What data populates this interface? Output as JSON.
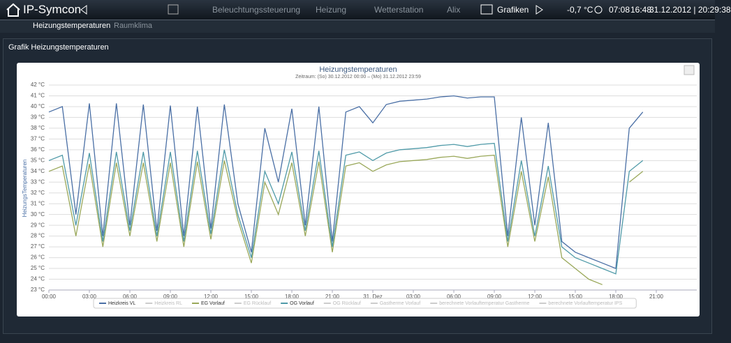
{
  "header": {
    "brand": "IP-Symcon",
    "nav": [
      "Beleuchtungssteuerung",
      "Heizung",
      "Wetterstation",
      "Alix",
      "Grafiken"
    ],
    "status": [
      "-0,7 °C",
      "07:08",
      "16:48",
      "31.12.2012 | 20:29:38"
    ]
  },
  "tabs": [
    "Heizungstemperaturen",
    "Raumklima"
  ],
  "section": {
    "title": "Grafik Heizungstemperaturen"
  },
  "chart_data": {
    "type": "line",
    "title": "Heizungstemperaturen",
    "subtitle": "Zeitraum: (So) 30.12.2012 00:00 – (Mo) 31.12.2012 23:59",
    "ylabel": "HeizungsTemperaturen",
    "x": [
      0,
      1,
      2,
      3,
      4,
      5,
      6,
      7,
      8,
      9,
      10,
      11,
      12,
      13,
      14,
      15,
      16,
      17,
      18,
      19,
      20,
      21,
      22,
      23,
      24,
      25,
      26,
      27,
      28,
      29,
      30,
      31,
      32,
      33,
      34,
      35,
      36,
      37,
      38,
      39,
      40,
      41,
      42,
      43,
      44
    ],
    "xlim": [
      0,
      48
    ],
    "xticks": [
      {
        "value": 0,
        "label": "00:00"
      },
      {
        "value": 3,
        "label": "03:00"
      },
      {
        "value": 6,
        "label": "06:00"
      },
      {
        "value": 9,
        "label": "09:00"
      },
      {
        "value": 12,
        "label": "12:00"
      },
      {
        "value": 15,
        "label": "15:00"
      },
      {
        "value": 18,
        "label": "18:00"
      },
      {
        "value": 21,
        "label": "21:00"
      },
      {
        "value": 24,
        "label": "31. Dez"
      },
      {
        "value": 27,
        "label": "03:00"
      },
      {
        "value": 30,
        "label": "06:00"
      },
      {
        "value": 33,
        "label": "09:00"
      },
      {
        "value": 36,
        "label": "12:00"
      },
      {
        "value": 39,
        "label": "15:00"
      },
      {
        "value": 42,
        "label": "18:00"
      },
      {
        "value": 45,
        "label": "21:00"
      }
    ],
    "ylim": [
      23,
      42
    ],
    "yticks": [
      {
        "value": 23,
        "label": "23 °C"
      },
      {
        "value": 24,
        "label": "24 °C"
      },
      {
        "value": 25,
        "label": "25 °C"
      },
      {
        "value": 26,
        "label": "26 °C"
      },
      {
        "value": 27,
        "label": "27 °C"
      },
      {
        "value": 28,
        "label": "28 °C"
      },
      {
        "value": 29,
        "label": "29 °C"
      },
      {
        "value": 30,
        "label": "30 °C"
      },
      {
        "value": 31,
        "label": "31 °C"
      },
      {
        "value": 32,
        "label": "32 °C"
      },
      {
        "value": 33,
        "label": "33 °C"
      },
      {
        "value": 34,
        "label": "34 °C"
      },
      {
        "value": 35,
        "label": "35 °C"
      },
      {
        "value": 36,
        "label": "36 °C"
      },
      {
        "value": 37,
        "label": "37 °C"
      },
      {
        "value": 38,
        "label": "38 °C"
      },
      {
        "value": 39,
        "label": "39 °C"
      },
      {
        "value": 40,
        "label": "40 °C"
      },
      {
        "value": 41,
        "label": "41 °C"
      },
      {
        "value": 42,
        "label": "42 °C"
      }
    ],
    "grid": true,
    "series": [
      {
        "name": "Heizkreis VL",
        "color": "#4a6fa5",
        "values": [
          39.5,
          40,
          30,
          40.3,
          28,
          40.3,
          29,
          40.2,
          28.5,
          40.1,
          28,
          40,
          28.7,
          40.2,
          31,
          26.5,
          38,
          33,
          39.8,
          29,
          40,
          27.5,
          39.5,
          40,
          38.5,
          40.2,
          40.5,
          40.6,
          40.7,
          40.9,
          41,
          40.8,
          40.9,
          40.9,
          28,
          39,
          29,
          38.5,
          27.5,
          26.5,
          26,
          25.5,
          25,
          38,
          39.5
        ]
      },
      {
        "name": "Heizkreis RL",
        "color": "#bbbbbb",
        "visible": false
      },
      {
        "name": "EG Vorlauf",
        "color": "#9aa85a",
        "values": [
          34,
          34.5,
          28,
          34.7,
          27,
          34.8,
          28,
          34.8,
          27.5,
          34.8,
          27,
          34.9,
          27.7,
          35,
          29.5,
          25.5,
          33,
          30,
          34.8,
          28,
          34.9,
          26.5,
          34.5,
          34.8,
          34,
          34.6,
          34.9,
          35,
          35.1,
          35.3,
          35.4,
          35.2,
          35.4,
          35.5,
          27,
          34,
          27.5,
          33.5,
          26,
          25,
          24,
          23.5,
          null,
          33,
          34
        ]
      },
      {
        "name": "EG Rücklauf",
        "color": "#bbbbbb",
        "visible": false
      },
      {
        "name": "OG Vorlauf",
        "color": "#4f9aa8",
        "values": [
          35,
          35.5,
          29,
          35.7,
          27.5,
          35.8,
          28.5,
          35.8,
          28,
          35.8,
          27.5,
          35.9,
          28.2,
          36,
          30,
          26,
          34,
          31,
          35.8,
          28.5,
          35.9,
          27,
          35.5,
          35.8,
          35,
          35.7,
          36,
          36.1,
          36.2,
          36.4,
          36.5,
          36.3,
          36.5,
          36.6,
          27.5,
          35,
          28,
          34.5,
          27,
          26,
          25.5,
          25,
          24.5,
          34,
          35
        ]
      },
      {
        "name": "OG Rücklauf",
        "color": "#bbbbbb",
        "visible": false
      },
      {
        "name": "Gastherme Vorlauf",
        "color": "#bbbbbb",
        "visible": false
      },
      {
        "name": "berechnete Vorlauftemperatur Gastherme",
        "color": "#bbbbbb",
        "visible": false
      },
      {
        "name": "berechnete Vorlauftemperatur IPS",
        "color": "#bbbbbb",
        "visible": false
      }
    ]
  }
}
